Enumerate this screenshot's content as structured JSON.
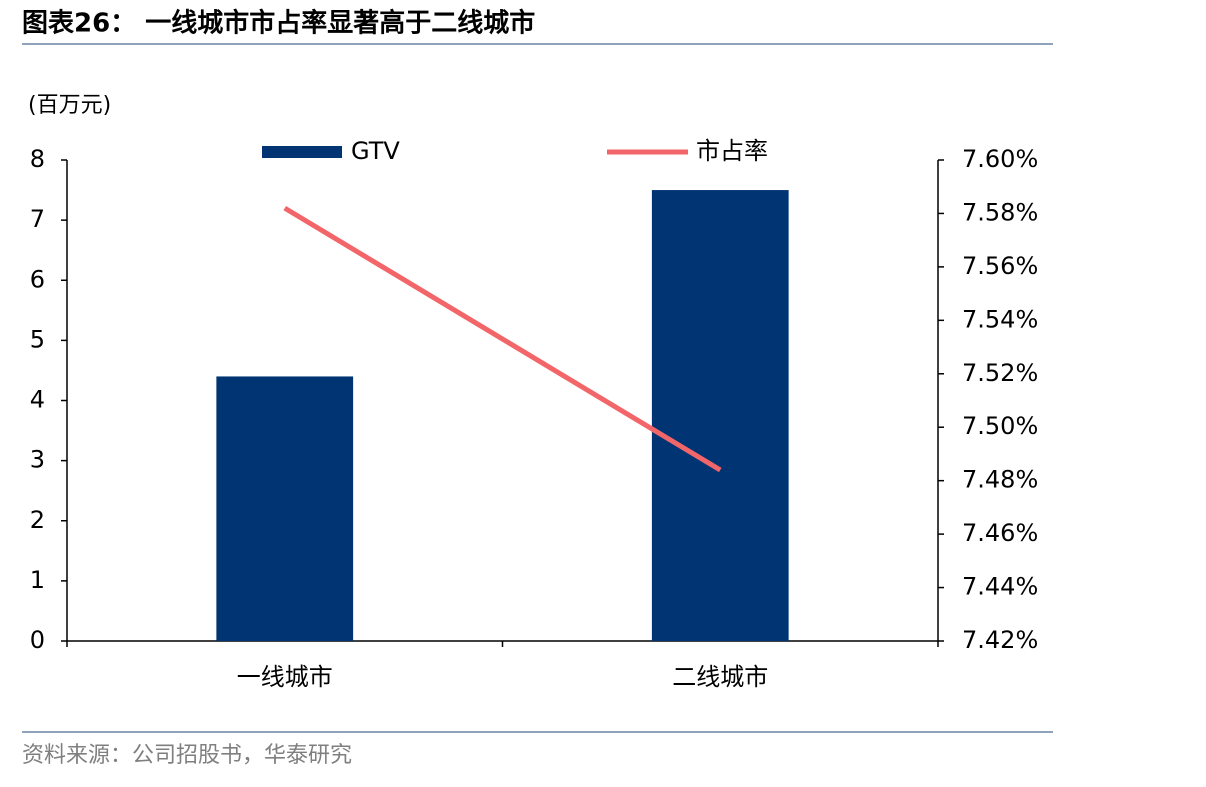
{
  "chart_data": {
    "type": "bar-line",
    "title": "图表26： 一线城市市占率显著高于二线城市",
    "y_label": "(百万元)",
    "source": "资料来源：公司招股书，华泰研究",
    "categories": [
      "一线城市",
      "二线城市"
    ],
    "series": [
      {
        "name": "GTV",
        "type": "bar",
        "color": "#003473",
        "values": [
          4.4,
          7.5
        ]
      },
      {
        "name": "市占率",
        "type": "line",
        "axis": "y2",
        "color": "#f2666a",
        "values": [
          7.582,
          7.484
        ]
      }
    ],
    "ylim": [
      0,
      8
    ],
    "yticks": [
      0,
      1,
      2,
      3,
      4,
      5,
      6,
      7,
      8
    ],
    "y2lim": [
      7.42,
      7.6
    ],
    "y2ticks": [
      {
        "value": 7.42,
        "label": "7.42%"
      },
      {
        "value": 7.44,
        "label": "7.44%"
      },
      {
        "value": 7.46,
        "label": "7.46%"
      },
      {
        "value": 7.48,
        "label": "7.48%"
      },
      {
        "value": 7.5,
        "label": "7.50%"
      },
      {
        "value": 7.52,
        "label": "7.52%"
      },
      {
        "value": 7.54,
        "label": "7.54%"
      },
      {
        "value": 7.56,
        "label": "7.56%"
      },
      {
        "value": 7.58,
        "label": "7.58%"
      },
      {
        "value": 7.6,
        "label": "7.60%"
      }
    ],
    "grid": false
  }
}
